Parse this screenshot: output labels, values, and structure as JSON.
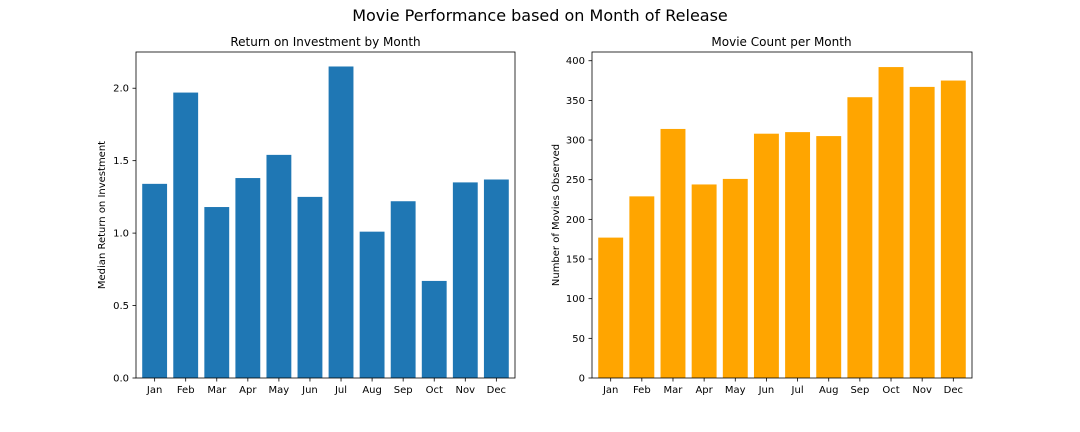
{
  "figure": {
    "suptitle": "Movie Performance based on Month of Release"
  },
  "chart_data": [
    {
      "type": "bar",
      "title": "Return on Investment by Month",
      "xlabel": "",
      "ylabel": "Median Return on Investment",
      "categories": [
        "Jan",
        "Feb",
        "Mar",
        "Apr",
        "May",
        "Jun",
        "Jul",
        "Aug",
        "Sep",
        "Oct",
        "Nov",
        "Dec"
      ],
      "values": [
        1.34,
        1.97,
        1.18,
        1.38,
        1.54,
        1.25,
        2.15,
        1.01,
        1.22,
        0.67,
        1.35,
        1.37
      ],
      "ylim": [
        0,
        2.25
      ],
      "yticks": [
        0.0,
        0.5,
        1.0,
        1.5,
        2.0
      ],
      "ytick_labels": [
        "0.0",
        "0.5",
        "1.0",
        "1.5",
        "2.0"
      ],
      "color": "#1f77b4",
      "grid": false
    },
    {
      "type": "bar",
      "title": "Movie Count per Month",
      "xlabel": "",
      "ylabel": "Number of Movies Observed",
      "categories": [
        "Jan",
        "Feb",
        "Mar",
        "Apr",
        "May",
        "Jun",
        "Jul",
        "Aug",
        "Sep",
        "Oct",
        "Nov",
        "Dec"
      ],
      "values": [
        177,
        229,
        314,
        244,
        251,
        308,
        310,
        305,
        354,
        392,
        367,
        375
      ],
      "ylim": [
        0,
        411
      ],
      "yticks": [
        0,
        50,
        100,
        150,
        200,
        250,
        300,
        350,
        400
      ],
      "ytick_labels": [
        "0",
        "50",
        "100",
        "150",
        "200",
        "250",
        "300",
        "350",
        "400"
      ],
      "color": "#ffa500",
      "grid": false
    }
  ]
}
